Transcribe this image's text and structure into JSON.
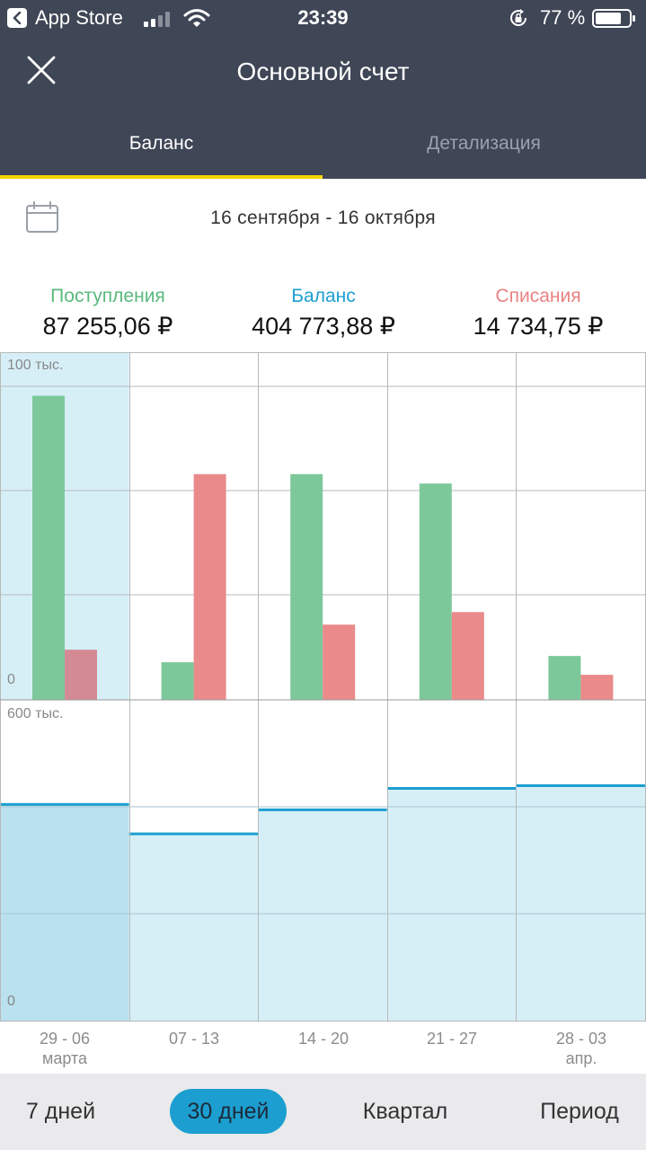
{
  "status_bar": {
    "back_app": "App Store",
    "time": "23:39",
    "battery_pct": "77 %",
    "battery_level": 0.77
  },
  "header": {
    "title": "Основной счет",
    "tabs": [
      {
        "label": "Баланс",
        "active": true
      },
      {
        "label": "Детализация",
        "active": false
      }
    ]
  },
  "date_range": "16 сентября - 16 октября",
  "summary": {
    "income": {
      "label": "Поступления",
      "value": "87 255,06 ₽"
    },
    "balance": {
      "label": "Баланс",
      "value": "404 773,88 ₽"
    },
    "expense": {
      "label": "Списания",
      "value": "14 734,75 ₽"
    }
  },
  "colors": {
    "header_bg": "#3f4656",
    "accent_yellow": "#f5d400",
    "income_green": "#7cc89a",
    "expense_red": "#ea8a8a",
    "balance_blue": "#1c9fd0",
    "selected_bg": "#d6eff7"
  },
  "chart_data": [
    {
      "type": "bar",
      "categories": [
        "29 - 06",
        "07 - 13",
        "14 - 20",
        "21 - 27",
        "28 - 03"
      ],
      "ylim": [
        0,
        100000
      ],
      "ytick_labels": {
        "top": "100 тыс.",
        "bottom": "0"
      },
      "grid": true,
      "series": [
        {
          "values": [
            97000,
            12000,
            72000,
            69000,
            14000
          ]
        },
        {
          "values": [
            16000,
            72000,
            24000,
            28000,
            8000
          ]
        }
      ],
      "selected_index": 0
    },
    {
      "type": "area",
      "categories": [
        "29 - 06",
        "07 - 13",
        "14 - 20",
        "21 - 27",
        "28 - 03"
      ],
      "ylim": [
        0,
        600000
      ],
      "ytick_labels": {
        "top": "600 тыс.",
        "bottom": "0"
      },
      "grid": true,
      "series": [
        {
          "values": [
            405000,
            350000,
            395000,
            435000,
            440000
          ]
        }
      ],
      "selected_index": 0
    }
  ],
  "x_labels": [
    {
      "range": "29 - 06",
      "month": "марта"
    },
    {
      "range": "07 - 13",
      "month": ""
    },
    {
      "range": "14 - 20",
      "month": ""
    },
    {
      "range": "21 - 27",
      "month": ""
    },
    {
      "range": "28 - 03",
      "month": "апр."
    }
  ],
  "periods": [
    {
      "label": "7 дней",
      "active": false
    },
    {
      "label": "30 дней",
      "active": true
    },
    {
      "label": "Квартал",
      "active": false
    },
    {
      "label": "Период",
      "active": false
    }
  ]
}
